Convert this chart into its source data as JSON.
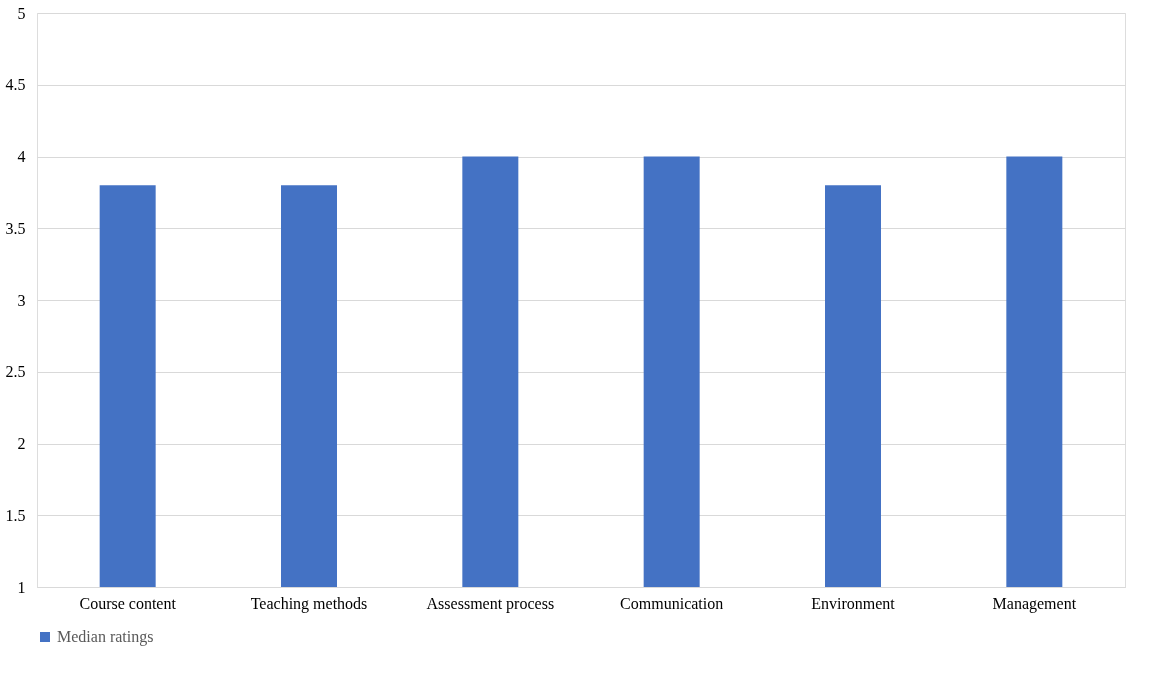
{
  "chart_data": {
    "type": "bar",
    "categories": [
      "Course content",
      "Teaching methods",
      "Assessment process",
      "Communication",
      "Environment",
      "Management"
    ],
    "series": [
      {
        "name": "Median ratings",
        "color": "#4472c4",
        "values": [
          3.8,
          3.8,
          4,
          4,
          3.8,
          4
        ]
      }
    ],
    "ylim": [
      1,
      5
    ],
    "yticks": [
      1,
      1.5,
      2,
      2.5,
      3,
      3.5,
      4,
      4.5,
      5
    ],
    "grid": "y",
    "legend": "bottom"
  }
}
